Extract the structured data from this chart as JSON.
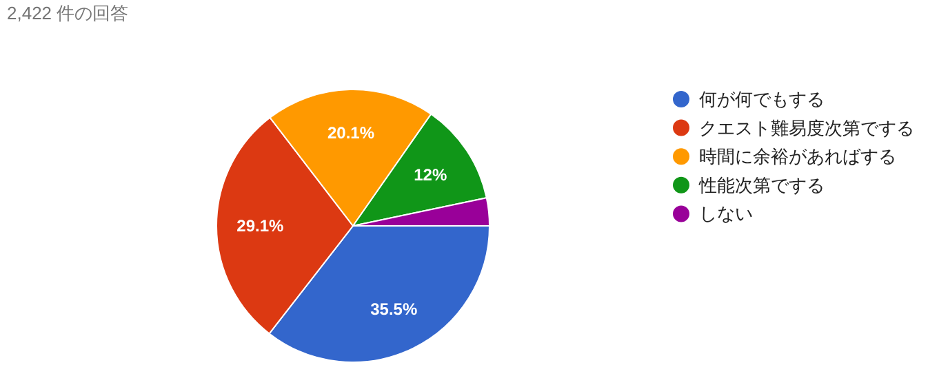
{
  "chart_data": {
    "type": "pie",
    "title": "2,422 件の回答",
    "categories": [
      "何が何でもする",
      "クエスト難易度次第でする",
      "時間に余裕があればする",
      "性能次第でする",
      "しない"
    ],
    "values": [
      35.5,
      29.1,
      20.1,
      12,
      3.3
    ],
    "colors": [
      "#3366cc",
      "#dc3912",
      "#ff9900",
      "#109618",
      "#990099"
    ],
    "value_labels": [
      "35.5%",
      "29.1%",
      "20.1%",
      "12%",
      null
    ],
    "legend": "right"
  }
}
